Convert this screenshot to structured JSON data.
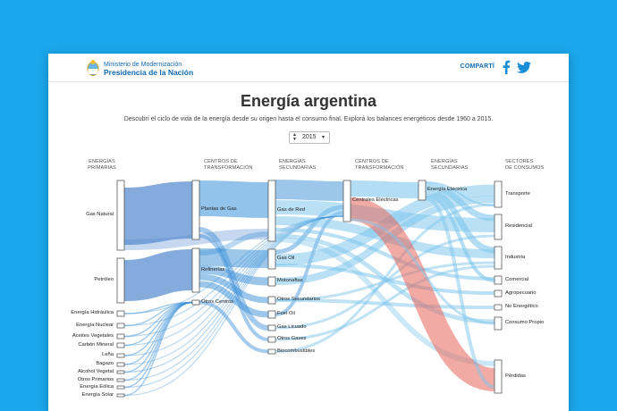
{
  "header": {
    "org_line1": "Ministerio de Modernización",
    "org_line2": "Presidencia de la Nación",
    "share_label": "COMPARTÍ",
    "facebook_icon": "facebook-icon",
    "twitter_icon": "twitter-icon"
  },
  "page": {
    "title": "Energía argentina",
    "subtitle": "Descubrí el ciclo de vida de la energía desde su origen hasta el consumo final. Explorá los balances energéticos desde 1960 a 2015.",
    "year_selected": "2015"
  },
  "columns": {
    "col1": [
      "ENERGÍAS",
      "PRIMARIAS"
    ],
    "col2": [
      "CENTROS DE",
      "TRANSFORMACIÓN"
    ],
    "col3": [
      "ENERGÍAS",
      "SECUNDARIAS"
    ],
    "col4": [
      "CENTROS DE",
      "TRANSFORMACIÓN"
    ],
    "col5": [
      "ENERGÍAS",
      "SECUNDARIAS"
    ],
    "col6": [
      "SECTORES",
      "DE CONSUMOS"
    ]
  },
  "nodes": {
    "primarias": [
      "Gas Natural",
      "Petróleo",
      "Energía Hidráulica",
      "Energía Nuclear",
      "Aceites Vegetales",
      "Carbón Mineral",
      "Leña",
      "Bagazo",
      "Alcohol Vegetal",
      "Otros Primarios",
      "Energía Eólica",
      "Energía Solar"
    ],
    "transformacion1": [
      "Plantas de Gas",
      "Refinerías",
      "Otros Centros"
    ],
    "secundarias1": [
      "Gas de Red",
      "Gas Oil",
      "Motonaftas",
      "Otros Secundarios",
      "Fuel Oil",
      "Gas Licuado",
      "Otros Gases",
      "Biocombustibles"
    ],
    "transformacion2": [
      "Centrales Eléctricas"
    ],
    "secundarias2": [
      "Energía Eléctrica"
    ],
    "consumos": [
      "Transporte",
      "Residencial",
      "Industria",
      "Comercial",
      "Agropecuario",
      "No Energético",
      "Consumo Propio",
      "Pérdidas"
    ]
  },
  "colors": {
    "background": "#1aa7ec",
    "brand_blue": "#0f6ab4",
    "flow_blue": "#3a8fd8",
    "flow_light": "#7fc6ec",
    "flow_red": "#e8665a",
    "primary_flow": "#5b8fd0"
  }
}
